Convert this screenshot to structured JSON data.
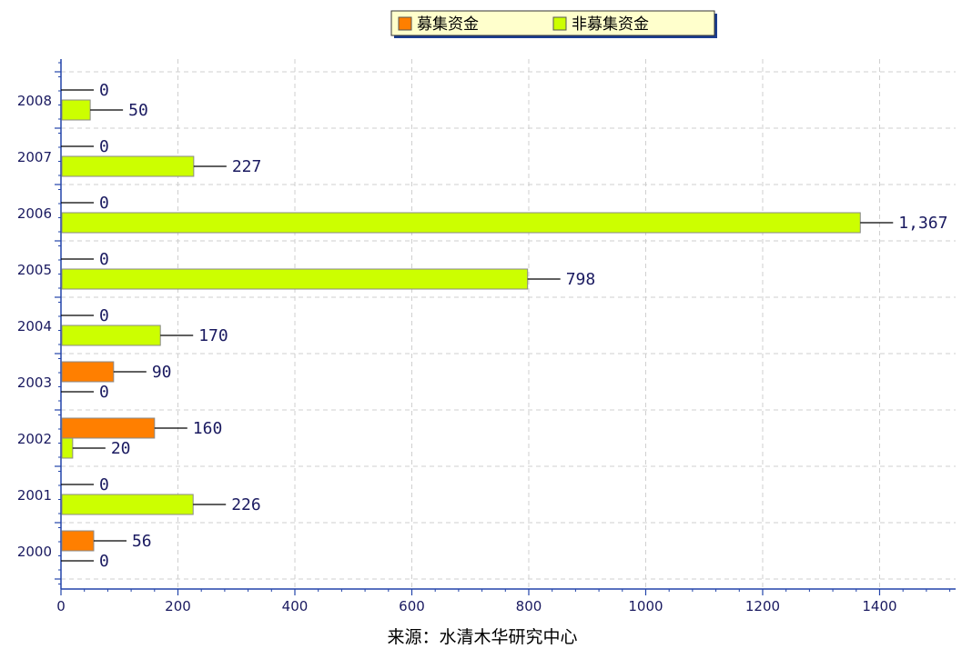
{
  "chart_data": {
    "type": "bar",
    "orientation": "horizontal",
    "categories": [
      "2000",
      "2001",
      "2002",
      "2003",
      "2004",
      "2005",
      "2006",
      "2007",
      "2008"
    ],
    "series": [
      {
        "name": "募集资金",
        "color": "#ff7f00",
        "values": [
          56,
          0,
          160,
          90,
          0,
          0,
          0,
          0,
          0
        ],
        "labels": [
          "56",
          "0",
          "160",
          "90",
          "0",
          "0",
          "0",
          "0",
          "0"
        ]
      },
      {
        "name": "非募集资金",
        "color": "#ccff00",
        "values": [
          0,
          226,
          20,
          0,
          170,
          798,
          1367,
          227,
          50
        ],
        "labels": [
          "0",
          "226",
          "20",
          "0",
          "170",
          "798",
          "1,367",
          "227",
          "50"
        ]
      }
    ],
    "xlim": [
      0,
      1530
    ],
    "xticks": [
      0,
      200,
      400,
      600,
      800,
      1000,
      1200,
      1400
    ],
    "xtick_labels": [
      "0",
      "200",
      "400",
      "600",
      "800",
      "1000",
      "1200",
      "1400"
    ],
    "xlabel": "来源：水清木华研究中心",
    "ylabel": "",
    "title": "",
    "grid": true,
    "legend_position": "top-center"
  }
}
